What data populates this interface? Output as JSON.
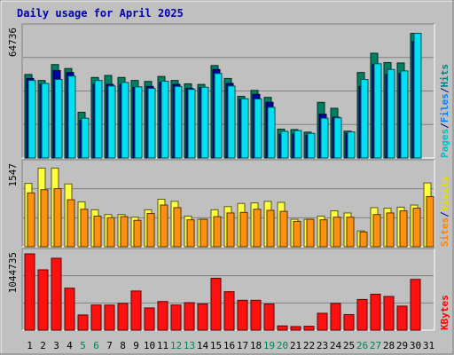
{
  "chart_data": {
    "type": "bar",
    "title": "Daily usage for April 2025",
    "categories": [
      "1",
      "2",
      "3",
      "4",
      "5",
      "6",
      "7",
      "8",
      "9",
      "10",
      "11",
      "12",
      "13",
      "14",
      "15",
      "16",
      "17",
      "18",
      "19",
      "20",
      "21",
      "22",
      "23",
      "24",
      "25",
      "26",
      "27",
      "28",
      "29",
      "30",
      "31"
    ],
    "weekend_days": [
      "5",
      "6",
      "12",
      "13",
      "19",
      "20",
      "26",
      "27"
    ],
    "panels": [
      {
        "name": "hits-files-pages",
        "ymax_label": "64736",
        "ymax": 64736,
        "legend": [
          {
            "label": "Pages",
            "color": "#00c0c0"
          },
          {
            "label": "/",
            "color": "#000080"
          },
          {
            "label": "Files",
            "color": "#0080ff"
          },
          {
            "label": "/",
            "color": "#000080"
          },
          {
            "label": "Hits",
            "color": "#008080"
          }
        ],
        "series": [
          {
            "name": "Hits",
            "color": "#008060",
            "values": [
              42000,
              39000,
              47000,
              45000,
              23000,
              40500,
              41500,
              40500,
              39000,
              38500,
              41000,
              39000,
              37300,
              37000,
              46500,
              40000,
              31000,
              34000,
              30500,
              14500,
              14300,
              13000,
              28000,
              25000,
              13500,
              43000,
              52700,
              48000,
              47800,
              62700,
              0
            ]
          },
          {
            "name": "Files",
            "color": "#0000a0",
            "values": [
              40000,
              37000,
              44000,
              43000,
              19000,
              37000,
              37000,
              37000,
              35500,
              36000,
              38000,
              37000,
              35000,
              35500,
              44500,
              37500,
              29500,
              32000,
              28000,
              12000,
              12000,
              11500,
              22000,
              20500,
              12500,
              36000,
              47000,
              42000,
              42500,
              58500,
              0
            ]
          },
          {
            "name": "Pages",
            "color": "#00e0f0",
            "values": [
              39000,
              37500,
              39500,
              41200,
              20000,
              39000,
              36200,
              38000,
              35800,
              35000,
              38600,
              36000,
              34500,
              35600,
              42500,
              36200,
              29800,
              29700,
              25500,
              13400,
              13800,
              12400,
              20000,
              20200,
              13100,
              39500,
              47400,
              44500,
              43800,
              62700,
              0
            ]
          }
        ]
      },
      {
        "name": "visits-sites",
        "ymax_label": "1547",
        "ymax": 1547,
        "legend": [
          {
            "label": "Sites",
            "color": "#ff8000"
          },
          {
            "label": "/",
            "color": "#000080"
          },
          {
            "label": "Visits",
            "color": "#e0e000"
          }
        ],
        "series": [
          {
            "name": "Visits",
            "color": "#ffff40",
            "values": [
              1200,
              1490,
              1490,
              1190,
              850,
              700,
              610,
              610,
              560,
              700,
              900,
              860,
              580,
              520,
              700,
              760,
              820,
              830,
              860,
              840,
              520,
              520,
              580,
              680,
              640,
              300,
              740,
              730,
              750,
              790,
              1210
            ]
          },
          {
            "name": "Sites",
            "color": "#ff9010",
            "values": [
              1020,
              1080,
              1100,
              890,
              710,
              580,
              550,
              570,
              500,
              630,
              790,
              740,
              510,
              520,
              570,
              640,
              650,
              710,
              690,
              670,
              480,
              520,
              510,
              560,
              560,
              280,
              610,
              640,
              680,
              730,
              950
            ]
          }
        ]
      },
      {
        "name": "kbytes",
        "ymax_label": "1044735",
        "ymax": 1044735,
        "legend": [
          {
            "label": "KBytes",
            "color": "#ff0000"
          }
        ],
        "series": [
          {
            "name": "KBytes",
            "color": "#ff1010",
            "values": [
              1044735,
              826000,
              984000,
              575000,
              208000,
              344000,
              343000,
              366000,
              536000,
              304000,
              392000,
              344000,
              376000,
              359000,
              710000,
              526000,
              409000,
              409000,
              358000,
              58000,
              49000,
              53000,
              231000,
              366000,
              213000,
              420000,
              492000,
              461000,
              329000,
              695000,
              0
            ]
          }
        ]
      }
    ]
  }
}
